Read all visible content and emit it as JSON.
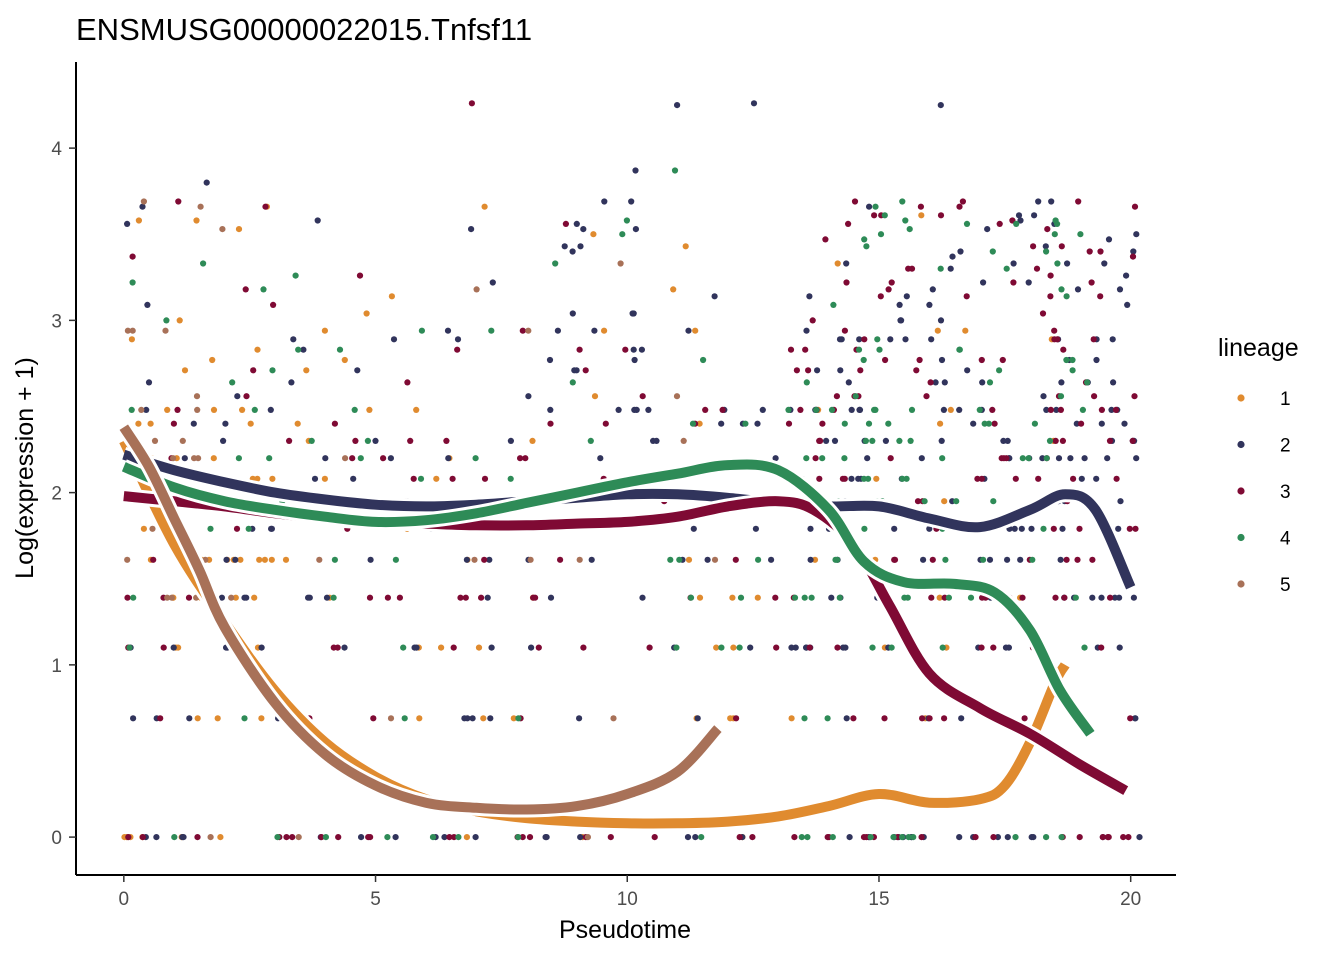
{
  "chart_data": {
    "type": "scatter",
    "title": "ENSMUSG00000022015.Tnfsf11",
    "xlabel": "Pseudotime",
    "ylabel": "Log(expression + 1)",
    "xlim": [
      -0.95,
      20.9
    ],
    "ylim": [
      -0.22,
      4.5
    ],
    "x_ticks": [
      0,
      5,
      10,
      15,
      20
    ],
    "y_ticks": [
      0,
      1,
      2,
      3,
      4
    ],
    "grid": false,
    "legend": {
      "title": "lineage",
      "position": "right",
      "entries": [
        {
          "name": "1",
          "color": "#e08b2f"
        },
        {
          "name": "2",
          "color": "#31345c"
        },
        {
          "name": "3",
          "color": "#7f0a34"
        },
        {
          "name": "4",
          "color": "#2e8b57"
        },
        {
          "name": "5",
          "color": "#a87158"
        }
      ]
    },
    "expression_levels": [
      0,
      0.69,
      1.1,
      1.39,
      1.61,
      1.79,
      1.95,
      2.08,
      2.2,
      2.3,
      2.4,
      2.48,
      2.56,
      2.64,
      2.71,
      2.77,
      2.83,
      2.89,
      2.94,
      3.0,
      3.04,
      3.09,
      3.14,
      3.18,
      3.22,
      3.26,
      3.3,
      3.33,
      3.37,
      3.4,
      3.43,
      3.47,
      3.5,
      3.53,
      3.56,
      3.58,
      3.61,
      3.66,
      3.69,
      3.74,
      3.8,
      3.87,
      3.93,
      4.25,
      4.26
    ],
    "series": [
      {
        "name": "1",
        "color": "#e08b2f",
        "x_range": [
          0,
          18.7
        ],
        "smooth": {
          "x": [
            0,
            1,
            2,
            3,
            4,
            5,
            6,
            7,
            8,
            9,
            10,
            11,
            12,
            13,
            14,
            15,
            16,
            17,
            17.5,
            18,
            18.5,
            18.7
          ],
          "y": [
            2.3,
            1.7,
            1.25,
            0.85,
            0.55,
            0.35,
            0.22,
            0.15,
            0.11,
            0.09,
            0.08,
            0.08,
            0.09,
            0.12,
            0.18,
            0.25,
            0.2,
            0.22,
            0.3,
            0.55,
            0.9,
            1.0
          ]
        }
      },
      {
        "name": "2",
        "color": "#31345c",
        "x_range": [
          0,
          20.2
        ],
        "smooth": {
          "x": [
            0,
            1,
            2,
            3,
            4,
            5,
            6,
            7,
            8,
            9,
            10,
            11,
            12,
            13,
            14,
            15,
            16,
            17,
            18,
            18.7,
            19.3,
            20.0
          ],
          "y": [
            2.22,
            2.13,
            2.06,
            2.0,
            1.96,
            1.93,
            1.92,
            1.93,
            1.95,
            1.97,
            1.99,
            1.99,
            1.97,
            1.94,
            1.92,
            1.92,
            1.85,
            1.8,
            1.9,
            1.99,
            1.9,
            1.45
          ]
        }
      },
      {
        "name": "3",
        "color": "#7f0a34",
        "x_range": [
          0,
          20.1
        ],
        "smooth": {
          "x": [
            0,
            1,
            2,
            3,
            4,
            5,
            6,
            7,
            8,
            9,
            10,
            11,
            12,
            13,
            13.7,
            14.5,
            15.2,
            16,
            17,
            18,
            19,
            19.9
          ],
          "y": [
            1.98,
            1.95,
            1.92,
            1.88,
            1.85,
            1.83,
            1.82,
            1.81,
            1.81,
            1.82,
            1.83,
            1.86,
            1.92,
            1.95,
            1.9,
            1.7,
            1.35,
            0.95,
            0.75,
            0.6,
            0.42,
            0.27
          ]
        }
      },
      {
        "name": "4",
        "color": "#2e8b57",
        "x_range": [
          0,
          19.3
        ],
        "smooth": {
          "x": [
            0,
            1,
            2,
            3,
            4,
            5,
            6,
            7,
            8,
            9,
            10,
            11,
            12,
            13,
            14,
            14.7,
            15.5,
            16.5,
            17.3,
            18,
            18.6,
            19.2
          ],
          "y": [
            2.15,
            2.03,
            1.95,
            1.9,
            1.86,
            1.83,
            1.84,
            1.88,
            1.94,
            2.0,
            2.06,
            2.11,
            2.16,
            2.13,
            1.9,
            1.6,
            1.48,
            1.47,
            1.42,
            1.2,
            0.85,
            0.6
          ]
        }
      },
      {
        "name": "5",
        "color": "#a87158",
        "x_range": [
          0,
          11.8
        ],
        "smooth": {
          "x": [
            0,
            0.5,
            1,
            1.5,
            2,
            3,
            4,
            5,
            6,
            7,
            8,
            9,
            10,
            11,
            11.8
          ],
          "y": [
            2.38,
            2.15,
            1.85,
            1.55,
            1.22,
            0.78,
            0.48,
            0.3,
            0.2,
            0.17,
            0.16,
            0.18,
            0.25,
            0.38,
            0.63
          ]
        }
      }
    ]
  }
}
